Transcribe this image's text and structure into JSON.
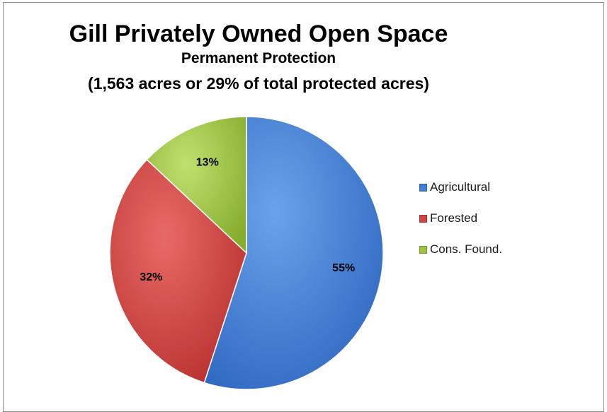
{
  "chart_data": {
    "type": "pie",
    "title": "Gill Privately Owned Open Space",
    "subtitle": "Permanent Protection",
    "subtitle2": "(1,563 acres or 29% of total protected acres)",
    "categories": [
      "Agricultural",
      "Forested",
      "Cons. Found."
    ],
    "values": [
      55,
      32,
      13
    ],
    "data_labels": [
      "55%",
      "32%",
      "13%"
    ],
    "colors": [
      "#3f7ed6",
      "#d24341",
      "#9cc43e"
    ],
    "legend_position": "right",
    "start_angle_deg": 0,
    "direction": "clockwise"
  }
}
